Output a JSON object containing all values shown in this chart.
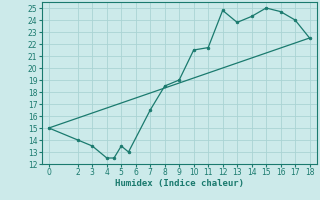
{
  "title": "",
  "xlabel": "Humidex (Indice chaleur)",
  "bg_color": "#cceaea",
  "line_color": "#1a7a6e",
  "grid_color": "#aad4d4",
  "line1_x": [
    0,
    2,
    3,
    4,
    4.5,
    5,
    5.5,
    7,
    8,
    9,
    10,
    11,
    12,
    13,
    14,
    15,
    16,
    17,
    18
  ],
  "line1_y": [
    15,
    14,
    13.5,
    12.5,
    12.5,
    13.5,
    13.0,
    16.5,
    18.5,
    19.0,
    21.5,
    21.7,
    24.8,
    23.8,
    24.3,
    25.0,
    24.7,
    24.0,
    22.5
  ],
  "line2_x": [
    0,
    18
  ],
  "line2_y": [
    15,
    22.5
  ],
  "xlim": [
    -0.5,
    18.5
  ],
  "ylim": [
    12,
    25.5
  ],
  "xticks": [
    0,
    2,
    3,
    4,
    5,
    6,
    7,
    8,
    9,
    10,
    11,
    12,
    13,
    14,
    15,
    16,
    17,
    18
  ],
  "yticks": [
    12,
    13,
    14,
    15,
    16,
    17,
    18,
    19,
    20,
    21,
    22,
    23,
    24,
    25
  ],
  "tick_fontsize": 5.5,
  "xlabel_fontsize": 6.5
}
